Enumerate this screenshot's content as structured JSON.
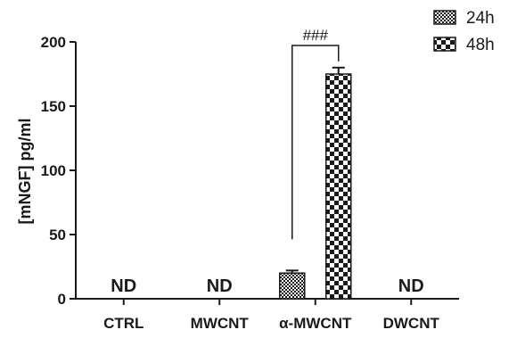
{
  "chart_data": {
    "type": "bar",
    "categories": [
      "CTRL",
      "MWCNT",
      "α-MWCNT",
      "DWCNT"
    ],
    "series": [
      {
        "name": "24h",
        "values": [
          null,
          null,
          20,
          null
        ],
        "errors": [
          null,
          null,
          2,
          null
        ],
        "pattern": "fine-checker"
      },
      {
        "name": "48h",
        "values": [
          null,
          null,
          175,
          null
        ],
        "errors": [
          null,
          null,
          5,
          null
        ],
        "pattern": "coarse-checker"
      }
    ],
    "ylabel": "[mNGF] pg/ml",
    "xlabel": "",
    "ylim": [
      0,
      200
    ],
    "yticks": [
      0,
      50,
      100,
      150,
      200
    ],
    "ytick_labels": [
      "0",
      "50",
      "100",
      "150",
      "200"
    ],
    "not_detected_label": "ND",
    "not_detected_categories": [
      "CTRL",
      "MWCNT",
      "DWCNT"
    ],
    "significance": {
      "label": "###",
      "between": [
        "24h",
        "48h"
      ],
      "category": "α-MWCNT"
    },
    "legend_position": "top-right",
    "grid": false
  }
}
